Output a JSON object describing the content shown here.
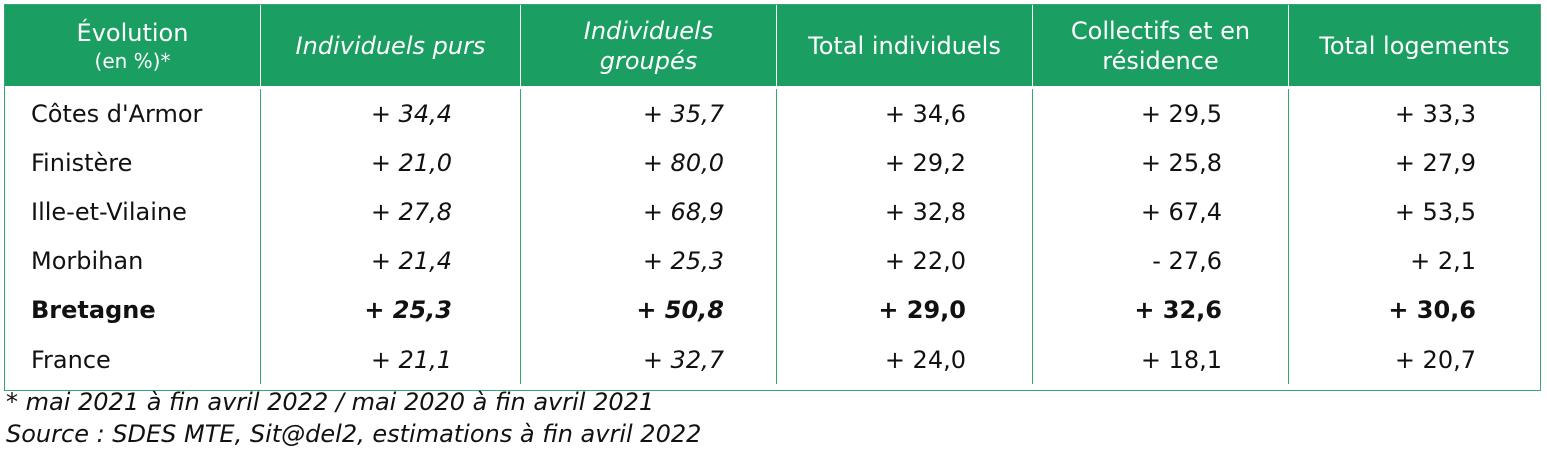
{
  "header": {
    "col0_line1": "Évolution",
    "col0_line2": "(en %)*",
    "col1": "Individuels purs",
    "col2_line1": "Individuels",
    "col2_line2": "groupés",
    "col3": "Total individuels",
    "col4_line1": "Collectifs et en",
    "col4_line2": "résidence",
    "col5": "Total logements"
  },
  "rows": [
    {
      "region": "Côtes d'Armor",
      "ind_purs": "+ 34,4",
      "ind_groupes": "+ 35,7",
      "total_ind": "+ 34,6",
      "collectifs": "+ 29,5",
      "total_log": "+ 33,3"
    },
    {
      "region": "Finistère",
      "ind_purs": "+ 21,0",
      "ind_groupes": "+ 80,0",
      "total_ind": "+ 29,2",
      "collectifs": "+ 25,8",
      "total_log": "+ 27,9"
    },
    {
      "region": "Ille-et-Vilaine",
      "ind_purs": "+ 27,8",
      "ind_groupes": "+ 68,9",
      "total_ind": "+ 32,8",
      "collectifs": "+ 67,4",
      "total_log": "+ 53,5"
    },
    {
      "region": "Morbihan",
      "ind_purs": "+ 21,4",
      "ind_groupes": "+ 25,3",
      "total_ind": "+ 22,0",
      "collectifs": "- 27,6",
      "total_log": "+ 2,1"
    },
    {
      "region": "Bretagne",
      "ind_purs": "+ 25,3",
      "ind_groupes": "+ 50,8",
      "total_ind": "+ 29,0",
      "collectifs": "+ 32,6",
      "total_log": "+ 30,6"
    },
    {
      "region": "France",
      "ind_purs": "+ 21,1",
      "ind_groupes": "+ 32,7",
      "total_ind": "+ 24,0",
      "collectifs": "+ 18,1",
      "total_log": "+ 20,7"
    }
  ],
  "notes": {
    "period": "* mai 2021 à fin avril 2022 / mai 2020 à fin avril 2021",
    "source": "Source : SDES MTE, Sit@del2, estimations à fin avril 2022"
  },
  "colors": {
    "header_bg": "#1a9e62",
    "border": "#3aa56f"
  }
}
